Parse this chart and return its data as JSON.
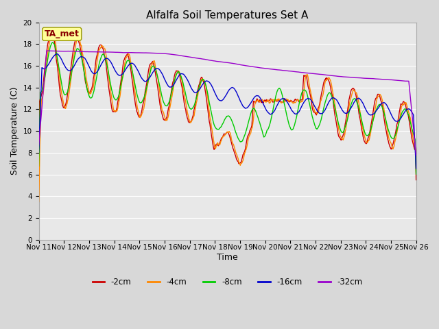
{
  "title": "Alfalfa Soil Temperatures Set A",
  "xlabel": "Time",
  "ylabel": "Soil Temperature (C)",
  "annotation": "TA_met",
  "ylim": [
    0,
    20
  ],
  "yticks": [
    0,
    2,
    4,
    6,
    8,
    10,
    12,
    14,
    16,
    18,
    20
  ],
  "xtick_labels": [
    "Nov 11",
    "Nov 12",
    "Nov 13",
    "Nov 14",
    "Nov 15",
    "Nov 16",
    "Nov 17",
    "Nov 18",
    "Nov 19",
    "Nov 20",
    "Nov 21",
    "Nov 22",
    "Nov 23",
    "Nov 24",
    "Nov 25",
    "Nov 26"
  ],
  "colors": {
    "-2cm": "#cc0000",
    "-4cm": "#ff8800",
    "-8cm": "#00cc00",
    "-16cm": "#0000cc",
    "-32cm": "#9900cc"
  },
  "legend_labels": [
    "-2cm",
    "-4cm",
    "-8cm",
    "-16cm",
    "-32cm"
  ],
  "background_color": "#d8d8d8",
  "plot_bg_color": "#e8e8e8",
  "annotation_bg": "#ffff99",
  "annotation_text_color": "#880000",
  "title_fontsize": 11,
  "axis_label_fontsize": 9,
  "tick_fontsize": 7.5,
  "legend_fontsize": 8.5,
  "grid_color": "#ffffff",
  "line_width": 1.0
}
